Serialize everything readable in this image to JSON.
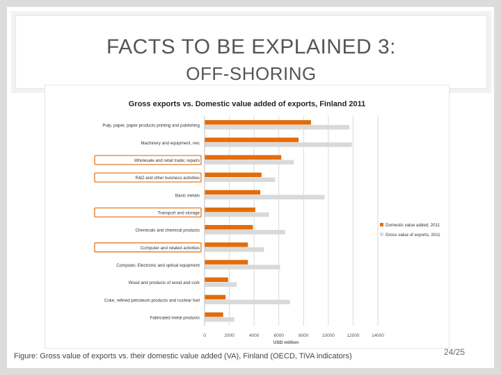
{
  "slide": {
    "title_line1": "FACTS TO BE EXPLAINED 3:",
    "title_line2": "OFF-SHORING",
    "caption": "Figure:  Gross value of exports vs. their domestic value added (VA), Finland (OECD, TiVA indicators)",
    "page_number": "24/25"
  },
  "colors": {
    "domestic": "#e36c0a",
    "gross": "#d9d9d9",
    "highlight_border": "#e36c0a"
  },
  "chart_data": {
    "type": "bar",
    "orientation": "horizontal",
    "title": "Gross exports vs. Domestic value added of exports, Finland 2011",
    "xlabel": "USD million",
    "xlim": [
      0,
      14000
    ],
    "xticks": [
      0,
      2000,
      4000,
      6000,
      8000,
      10000,
      12000,
      14000
    ],
    "grid": true,
    "legend_position": "right",
    "categories": [
      "Pulp, paper, paper products printing and publishing",
      "Machinery and equipment, nec",
      "Wholesale and retail trade; repairs",
      "R&D and other business activities",
      "Basic metals",
      "Transport and storage",
      "Chemicals and chemical products",
      "Computer and related activities",
      "Computer, Electronic and optical equipment",
      "Wood and products of wood and cork",
      "Coke, refined petroleum products and nuclear fuel",
      "Fabricated metal products"
    ],
    "highlighted": [
      "Wholesale and retail trade; repairs",
      "R&D and other business activities",
      "Transport and storage",
      "Computer and related activities"
    ],
    "series": [
      {
        "name": "Domestic value added, 2011",
        "values": [
          8600,
          7600,
          6200,
          4600,
          4500,
          4100,
          3900,
          3500,
          3500,
          1900,
          1700,
          1500
        ]
      },
      {
        "name": "Gross value of exports, 2011",
        "values": [
          11700,
          11900,
          7200,
          5700,
          9700,
          5200,
          6500,
          4800,
          6100,
          2600,
          6900,
          2400
        ]
      }
    ]
  }
}
